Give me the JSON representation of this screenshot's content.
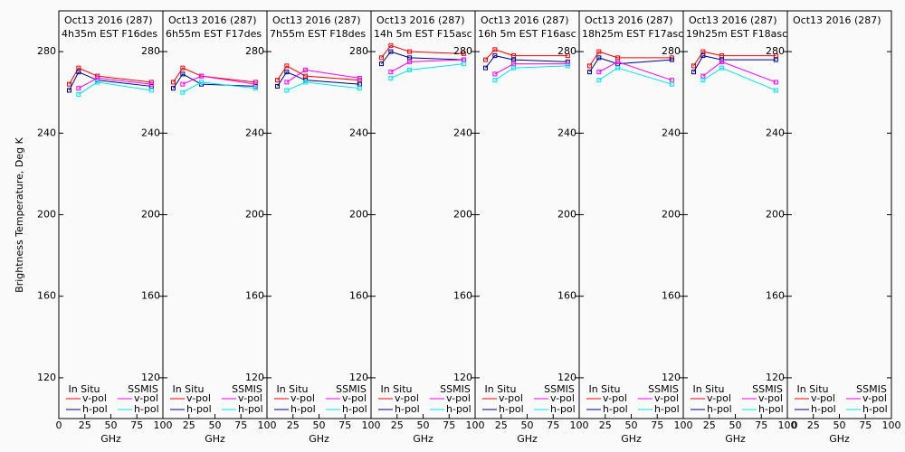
{
  "chart_data": {
    "type": "line",
    "x_label": "GHz",
    "y_label": "Brightness Temperature, Deg K",
    "xlim": [
      0,
      100
    ],
    "xticks": [
      0,
      25,
      50,
      75,
      100
    ],
    "ylim": [
      100,
      300
    ],
    "yticks": [
      120,
      160,
      200,
      240,
      280
    ],
    "legend": [
      {
        "name": "In Situ",
        "series": [
          {
            "name": "v-pol",
            "color": "#ff0000"
          },
          {
            "name": "h-pol",
            "color": "#00008b"
          }
        ]
      },
      {
        "name": "SSMIS",
        "series": [
          {
            "name": "v-pol",
            "color": "#ff00ff"
          },
          {
            "name": "h-pol",
            "color": "#00e5ee"
          }
        ]
      }
    ],
    "panels": [
      {
        "title": "Oct13 2016 (287)",
        "subtitle": "4h35m EST F16des",
        "series": [
          {
            "x": [
              10,
              19,
              37,
              89
            ],
            "values": [
              264,
              272,
              268,
              265
            ]
          },
          {
            "x": [
              10,
              19,
              37,
              89
            ],
            "values": [
              261,
              270,
              266,
              263
            ]
          },
          {
            "x": [
              19,
              37,
              89
            ],
            "values": [
              262,
              267,
              264
            ]
          },
          {
            "x": [
              19,
              37,
              89
            ],
            "values": [
              259,
              265,
              261
            ]
          }
        ]
      },
      {
        "title": "Oct13 2016 (287)",
        "subtitle": "6h55m EST F17des",
        "series": [
          {
            "x": [
              10,
              19,
              37,
              89
            ],
            "values": [
              265,
              272,
              268,
              265
            ]
          },
          {
            "x": [
              10,
              19,
              37,
              89
            ],
            "values": [
              262,
              269,
              264,
              263
            ]
          },
          {
            "x": [
              19,
              37,
              89
            ],
            "values": [
              264,
              268,
              264
            ]
          },
          {
            "x": [
              19,
              37,
              89
            ],
            "values": [
              260,
              265,
              262
            ]
          }
        ]
      },
      {
        "title": "Oct13 2016 (287)",
        "subtitle": "7h55m EST F18des",
        "series": [
          {
            "x": [
              10,
              19,
              37,
              89
            ],
            "values": [
              266,
              273,
              268,
              266
            ]
          },
          {
            "x": [
              10,
              19,
              37,
              89
            ],
            "values": [
              263,
              270,
              266,
              264
            ]
          },
          {
            "x": [
              19,
              37,
              89
            ],
            "values": [
              265,
              271,
              267
            ]
          },
          {
            "x": [
              19,
              37,
              89
            ],
            "values": [
              261,
              265,
              262
            ]
          }
        ]
      },
      {
        "title": "Oct13 2016 (287)",
        "subtitle": "14h 5m EST F15asc",
        "series": [
          {
            "x": [
              10,
              19,
              37,
              89
            ],
            "values": [
              277,
              283,
              280,
              279
            ]
          },
          {
            "x": [
              10,
              19,
              37,
              89
            ],
            "values": [
              274,
              280,
              277,
              276
            ]
          },
          {
            "x": [
              19,
              37,
              89
            ],
            "values": [
              270,
              275,
              276
            ]
          },
          {
            "x": [
              19,
              37,
              89
            ],
            "values": [
              267,
              271,
              274
            ]
          }
        ]
      },
      {
        "title": "Oct13 2016 (287)",
        "subtitle": "16h 5m EST F16asc",
        "series": [
          {
            "x": [
              10,
              19,
              37,
              89
            ],
            "values": [
              276,
              281,
              278,
              278
            ]
          },
          {
            "x": [
              10,
              19,
              37,
              89
            ],
            "values": [
              272,
              278,
              276,
              275
            ]
          },
          {
            "x": [
              19,
              37,
              89
            ],
            "values": [
              269,
              274,
              274
            ]
          },
          {
            "x": [
              19,
              37,
              89
            ],
            "values": [
              266,
              272,
              273
            ]
          }
        ]
      },
      {
        "title": "Oct13 2016 (287)",
        "subtitle": "18h25m EST F17asc",
        "series": [
          {
            "x": [
              10,
              19,
              37,
              89
            ],
            "values": [
              273,
              280,
              277,
              277
            ]
          },
          {
            "x": [
              10,
              19,
              37,
              89
            ],
            "values": [
              270,
              277,
              274,
              276
            ]
          },
          {
            "x": [
              19,
              37,
              89
            ],
            "values": [
              270,
              275,
              266
            ]
          },
          {
            "x": [
              19,
              37,
              89
            ],
            "values": [
              266,
              272,
              264
            ]
          }
        ]
      },
      {
        "title": "Oct13 2016 (287)",
        "subtitle": "19h25m EST F18asc",
        "series": [
          {
            "x": [
              10,
              19,
              37,
              89
            ],
            "values": [
              273,
              280,
              278,
              278
            ]
          },
          {
            "x": [
              10,
              19,
              37,
              89
            ],
            "values": [
              270,
              278,
              276,
              276
            ]
          },
          {
            "x": [
              19,
              37,
              89
            ],
            "values": [
              268,
              275,
              265
            ]
          },
          {
            "x": [
              19,
              37,
              89
            ],
            "values": [
              266,
              272,
              261
            ]
          }
        ]
      },
      {
        "title": "Oct13 2016 (287)"
      }
    ]
  }
}
